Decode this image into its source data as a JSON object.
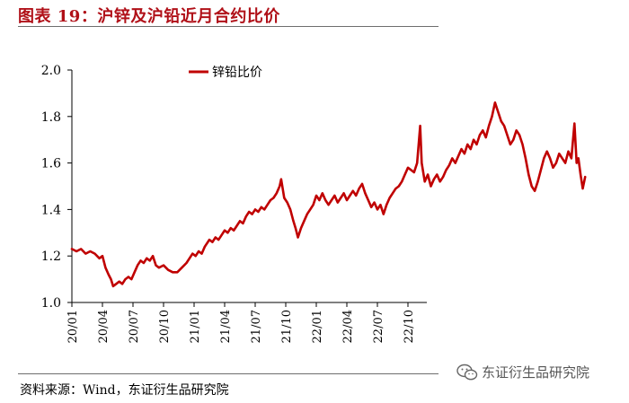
{
  "figure": {
    "title": "图表 19：沪锌及沪铅近月合约比价",
    "source": "资料来源：Wind，东证衍生品研究院",
    "watermark": "东证衍生品研究院",
    "watermark_icon": "wechat-icon"
  },
  "colors": {
    "line": "#c00000",
    "title": "#b01018",
    "axis": "#000000"
  },
  "chart_data": {
    "type": "line",
    "title": "",
    "xlabel": "",
    "ylabel": "",
    "ylim": [
      1.0,
      2.0
    ],
    "yticks": [
      "1.0",
      "1.2",
      "1.4",
      "1.6",
      "1.8",
      "2.0"
    ],
    "xticks": [
      "20/01",
      "20/04",
      "20/07",
      "20/10",
      "21/01",
      "21/04",
      "21/07",
      "21/10",
      "22/01",
      "22/04",
      "22/07",
      "22/10"
    ],
    "grid": false,
    "legend_position": "top-center",
    "series": [
      {
        "name": "锌铅比价",
        "color": "#c00000",
        "points": [
          [
            0.0,
            1.23
          ],
          [
            0.15,
            1.22
          ],
          [
            0.3,
            1.23
          ],
          [
            0.45,
            1.21
          ],
          [
            0.6,
            1.22
          ],
          [
            0.75,
            1.21
          ],
          [
            0.9,
            1.19
          ],
          [
            1.0,
            1.2
          ],
          [
            1.1,
            1.15
          ],
          [
            1.2,
            1.12
          ],
          [
            1.28,
            1.1
          ],
          [
            1.35,
            1.07
          ],
          [
            1.45,
            1.08
          ],
          [
            1.55,
            1.09
          ],
          [
            1.65,
            1.08
          ],
          [
            1.75,
            1.1
          ],
          [
            1.85,
            1.11
          ],
          [
            1.95,
            1.1
          ],
          [
            2.05,
            1.13
          ],
          [
            2.15,
            1.16
          ],
          [
            2.25,
            1.18
          ],
          [
            2.35,
            1.17
          ],
          [
            2.45,
            1.19
          ],
          [
            2.55,
            1.18
          ],
          [
            2.65,
            1.2
          ],
          [
            2.75,
            1.16
          ],
          [
            2.85,
            1.15
          ],
          [
            3.0,
            1.16
          ],
          [
            3.15,
            1.14
          ],
          [
            3.3,
            1.13
          ],
          [
            3.45,
            1.13
          ],
          [
            3.6,
            1.15
          ],
          [
            3.75,
            1.17
          ],
          [
            3.85,
            1.19
          ],
          [
            3.95,
            1.21
          ],
          [
            4.05,
            1.2
          ],
          [
            4.15,
            1.22
          ],
          [
            4.25,
            1.21
          ],
          [
            4.35,
            1.24
          ],
          [
            4.5,
            1.27
          ],
          [
            4.6,
            1.26
          ],
          [
            4.7,
            1.28
          ],
          [
            4.8,
            1.27
          ],
          [
            4.9,
            1.29
          ],
          [
            5.0,
            1.31
          ],
          [
            5.1,
            1.3
          ],
          [
            5.2,
            1.32
          ],
          [
            5.3,
            1.31
          ],
          [
            5.4,
            1.33
          ],
          [
            5.5,
            1.35
          ],
          [
            5.6,
            1.34
          ],
          [
            5.7,
            1.37
          ],
          [
            5.8,
            1.39
          ],
          [
            5.9,
            1.38
          ],
          [
            6.0,
            1.4
          ],
          [
            6.1,
            1.39
          ],
          [
            6.2,
            1.41
          ],
          [
            6.3,
            1.4
          ],
          [
            6.4,
            1.42
          ],
          [
            6.5,
            1.44
          ],
          [
            6.6,
            1.45
          ],
          [
            6.7,
            1.47
          ],
          [
            6.8,
            1.5
          ],
          [
            6.85,
            1.53
          ],
          [
            6.95,
            1.45
          ],
          [
            7.05,
            1.43
          ],
          [
            7.15,
            1.4
          ],
          [
            7.25,
            1.35
          ],
          [
            7.32,
            1.32
          ],
          [
            7.4,
            1.28
          ],
          [
            7.5,
            1.32
          ],
          [
            7.6,
            1.35
          ],
          [
            7.7,
            1.38
          ],
          [
            7.8,
            1.4
          ],
          [
            7.9,
            1.42
          ],
          [
            8.0,
            1.46
          ],
          [
            8.1,
            1.44
          ],
          [
            8.2,
            1.47
          ],
          [
            8.3,
            1.44
          ],
          [
            8.4,
            1.42
          ],
          [
            8.5,
            1.44
          ],
          [
            8.6,
            1.46
          ],
          [
            8.7,
            1.43
          ],
          [
            8.8,
            1.45
          ],
          [
            8.9,
            1.47
          ],
          [
            9.0,
            1.44
          ],
          [
            9.1,
            1.46
          ],
          [
            9.2,
            1.48
          ],
          [
            9.3,
            1.46
          ],
          [
            9.4,
            1.49
          ],
          [
            9.5,
            1.51
          ],
          [
            9.6,
            1.47
          ],
          [
            9.7,
            1.44
          ],
          [
            9.8,
            1.41
          ],
          [
            9.9,
            1.43
          ],
          [
            10.0,
            1.4
          ],
          [
            10.1,
            1.42
          ],
          [
            10.2,
            1.38
          ],
          [
            10.3,
            1.42
          ],
          [
            10.4,
            1.45
          ],
          [
            10.5,
            1.47
          ],
          [
            10.6,
            1.49
          ],
          [
            10.7,
            1.5
          ],
          [
            10.8,
            1.52
          ],
          [
            10.9,
            1.55
          ],
          [
            11.0,
            1.58
          ],
          [
            11.1,
            1.57
          ],
          [
            11.2,
            1.56
          ],
          [
            11.3,
            1.6
          ],
          [
            11.4,
            1.76
          ],
          [
            11.45,
            1.6
          ],
          [
            11.55,
            1.52
          ],
          [
            11.65,
            1.55
          ],
          [
            11.75,
            1.5
          ],
          [
            11.85,
            1.53
          ],
          [
            11.95,
            1.55
          ],
          [
            12.05,
            1.52
          ],
          [
            12.15,
            1.54
          ],
          [
            12.25,
            1.57
          ],
          [
            12.35,
            1.59
          ],
          [
            12.45,
            1.62
          ],
          [
            12.55,
            1.6
          ],
          [
            12.65,
            1.63
          ],
          [
            12.75,
            1.66
          ],
          [
            12.85,
            1.64
          ],
          [
            12.95,
            1.68
          ],
          [
            13.05,
            1.66
          ],
          [
            13.15,
            1.7
          ],
          [
            13.25,
            1.68
          ],
          [
            13.35,
            1.72
          ],
          [
            13.45,
            1.74
          ],
          [
            13.55,
            1.71
          ],
          [
            13.65,
            1.76
          ],
          [
            13.75,
            1.8
          ],
          [
            13.85,
            1.86
          ],
          [
            13.95,
            1.82
          ],
          [
            14.05,
            1.78
          ],
          [
            14.15,
            1.76
          ],
          [
            14.25,
            1.72
          ],
          [
            14.35,
            1.68
          ],
          [
            14.45,
            1.7
          ],
          [
            14.55,
            1.74
          ],
          [
            14.65,
            1.72
          ],
          [
            14.75,
            1.68
          ],
          [
            14.85,
            1.62
          ],
          [
            14.95,
            1.55
          ],
          [
            15.05,
            1.5
          ],
          [
            15.15,
            1.48
          ],
          [
            15.25,
            1.52
          ],
          [
            15.35,
            1.57
          ],
          [
            15.45,
            1.62
          ],
          [
            15.55,
            1.65
          ],
          [
            15.65,
            1.62
          ],
          [
            15.75,
            1.58
          ],
          [
            15.85,
            1.6
          ],
          [
            15.95,
            1.64
          ],
          [
            16.05,
            1.62
          ],
          [
            16.15,
            1.6
          ],
          [
            16.25,
            1.65
          ],
          [
            16.35,
            1.62
          ],
          [
            16.45,
            1.77
          ],
          [
            16.52,
            1.6
          ],
          [
            16.58,
            1.62
          ],
          [
            16.65,
            1.55
          ],
          [
            16.72,
            1.49
          ],
          [
            16.8,
            1.54
          ]
        ]
      }
    ]
  }
}
